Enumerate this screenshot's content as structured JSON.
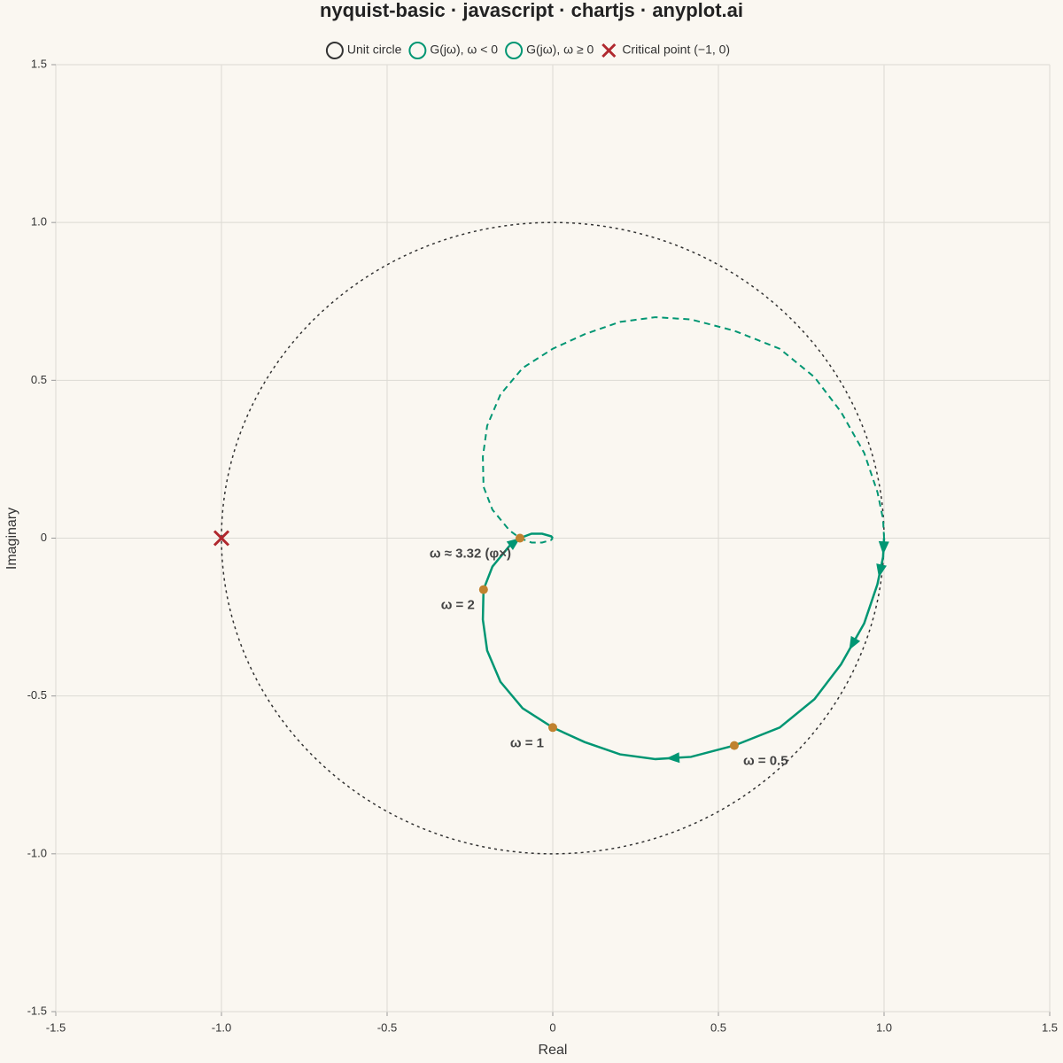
{
  "chart_data": {
    "type": "nyquist",
    "title": "nyquist-basic · javascript · chartjs · anyplot.ai",
    "xlabel": "Real",
    "ylabel": "Imaginary",
    "xlim": [
      -1.5,
      1.5
    ],
    "ylim": [
      -1.5,
      1.5
    ],
    "xticks": [
      -1.5,
      {
        "value": -1,
        "label": "-1.0"
      },
      -0.5,
      0,
      0.5,
      {
        "value": 1,
        "label": "1.0"
      },
      1.5
    ],
    "yticks": [
      -1.5,
      {
        "value": -1,
        "label": "-1.0"
      },
      -0.5,
      0,
      0.5,
      {
        "value": 1,
        "label": "1.0"
      },
      1.5
    ],
    "grid": true,
    "legend": "top",
    "series": [
      {
        "name": "Unit circle",
        "color": "#333333",
        "center": [
          0,
          0
        ],
        "radius": 1,
        "style": "dotted"
      },
      {
        "name": "G(jω), ω < 0",
        "color": "#009673",
        "style": "dashed",
        "x": [
          1.0,
          0.997,
          0.98,
          0.94,
          0.87,
          0.79,
          0.685,
          0.548,
          0.417,
          0.31,
          0.203,
          0.096,
          0,
          -0.091,
          -0.158,
          -0.198,
          -0.211,
          -0.209,
          -0.182,
          -0.131,
          -0.099,
          -0.064,
          -0.032,
          -0.005,
          0
        ],
        "y": [
          0,
          0.06,
          0.146,
          0.27,
          0.4,
          0.51,
          0.6,
          0.657,
          0.693,
          0.7,
          0.685,
          0.646,
          0.6,
          0.539,
          0.455,
          0.356,
          0.258,
          0.163,
          0.09,
          0.025,
          0,
          -0.014,
          -0.014,
          -0.006,
          0
        ]
      },
      {
        "name": "G(jω), ω ≥ 0",
        "color": "#009673",
        "style": "solid",
        "x": [
          1.0,
          0.997,
          0.98,
          0.94,
          0.87,
          0.79,
          0.685,
          0.548,
          0.417,
          0.31,
          0.203,
          0.096,
          0,
          -0.091,
          -0.158,
          -0.198,
          -0.211,
          -0.209,
          -0.182,
          -0.131,
          -0.099,
          -0.064,
          -0.032,
          -0.005,
          0
        ],
        "y": [
          0,
          -0.06,
          -0.146,
          -0.27,
          -0.4,
          -0.51,
          -0.6,
          -0.657,
          -0.693,
          -0.7,
          -0.685,
          -0.646,
          -0.6,
          -0.539,
          -0.455,
          -0.356,
          -0.258,
          -0.163,
          -0.09,
          -0.025,
          0,
          0.014,
          0.014,
          0.006,
          0
        ]
      },
      {
        "name": "Critical point (−1, 0)",
        "color": "#b0282e",
        "style": "cross",
        "x": [
          -1
        ],
        "y": [
          0
        ]
      }
    ],
    "markers": {
      "color": "#c0822f",
      "points": [
        {
          "label": "ω = 0.5",
          "x": 0.548,
          "y": -0.657
        },
        {
          "label": "ω = 1",
          "x": 0,
          "y": -0.6
        },
        {
          "label": "ω = 2",
          "x": -0.209,
          "y": -0.163
        },
        {
          "label": "ω ≈ 3.32 (φ×)",
          "x": -0.099,
          "y": 0
        }
      ]
    }
  }
}
